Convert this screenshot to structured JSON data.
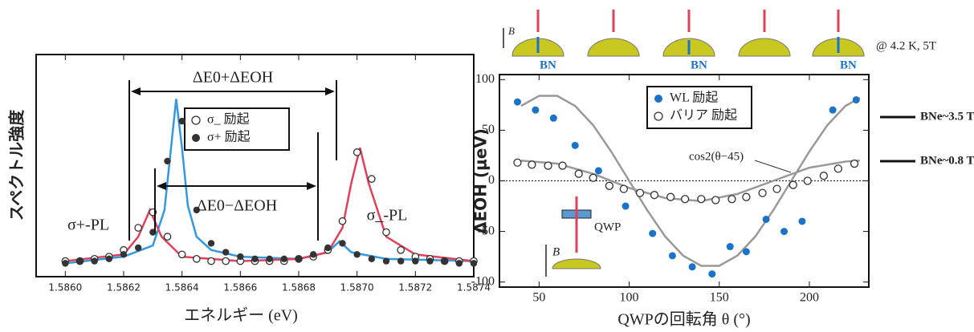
{
  "chart_data": [
    {
      "type": "scatter",
      "x_label": "エネルギー (eV)",
      "y_label": "スペクトル強度",
      "xlim": [
        1.5859,
        1.5874
      ],
      "ylim": [
        0,
        100
      ],
      "xticks": [
        {
          "value": 1.586,
          "label": "1.5860"
        },
        1.5862,
        1.5864,
        1.5866,
        1.5868,
        {
          "value": 1.587,
          "label": "1.5870"
        },
        1.5872,
        1.5874
      ],
      "series": [
        {
          "name": "σ_ 励起",
          "marker": "open",
          "color": "#333333",
          "x": [
            1.586,
            1.58605,
            1.5861,
            1.58615,
            1.5862,
            1.58625,
            1.5863,
            1.58635,
            1.5864,
            1.58645,
            1.5865,
            1.58655,
            1.5866,
            1.58665,
            1.5867,
            1.58675,
            1.5868,
            1.58685,
            1.5869,
            1.58695,
            1.587,
            1.58705,
            1.5871,
            1.58715,
            1.5872,
            1.58725,
            1.5873,
            1.58735,
            1.5874
          ],
          "values": [
            7,
            7,
            8,
            9,
            12,
            22,
            29,
            18,
            10,
            8,
            7,
            7,
            7,
            7,
            7,
            7,
            8,
            9,
            12,
            25,
            56,
            44,
            20,
            12,
            9,
            8,
            7,
            7,
            7
          ]
        },
        {
          "name": "σ+ 励起",
          "marker": "filled",
          "color": "#333333",
          "x": [
            1.586,
            1.58605,
            1.5861,
            1.58615,
            1.5862,
            1.58625,
            1.5863,
            1.58635,
            1.5864,
            1.58645,
            1.5865,
            1.58655,
            1.5866,
            1.58665,
            1.5867,
            1.58675,
            1.5868,
            1.58685,
            1.5869,
            1.58695,
            1.587,
            1.58705,
            1.5871,
            1.58715,
            1.5872,
            1.58725,
            1.5873,
            1.58735,
            1.5874
          ],
          "values": [
            6,
            7,
            7,
            8,
            10,
            13,
            20,
            52,
            70,
            30,
            15,
            11,
            9,
            8,
            8,
            8,
            8,
            10,
            13,
            15,
            10,
            8,
            7,
            7,
            7,
            7,
            7,
            6,
            6
          ]
        }
      ],
      "fits": [
        {
          "color": "#3399dd",
          "x": [
            1.586,
            1.5862,
            1.5863,
            1.58634,
            1.58636,
            1.58638,
            1.5864,
            1.58642,
            1.58645,
            1.5865,
            1.5866,
            1.5868,
            1.5869,
            1.58694,
            1.58698,
            1.5871,
            1.5874
          ],
          "values": [
            6,
            9,
            14,
            30,
            55,
            80,
            58,
            32,
            18,
            12,
            9,
            8,
            11,
            16,
            11,
            8,
            7
          ]
        },
        {
          "color": "#e0405a",
          "x": [
            1.586,
            1.5862,
            1.58625,
            1.58629,
            1.58633,
            1.5864,
            1.5866,
            1.5868,
            1.5869,
            1.58695,
            1.58698,
            1.58701,
            1.58704,
            1.5871,
            1.5872,
            1.5874
          ],
          "values": [
            7,
            10,
            18,
            30,
            18,
            9,
            7,
            8,
            11,
            22,
            42,
            58,
            42,
            18,
            10,
            7
          ]
        }
      ],
      "annotations": [
        "ΔE0+ΔEOH",
        "ΔE0−ΔEOH",
        "σ+-PL",
        "σ_-PL"
      ]
    },
    {
      "type": "scatter",
      "x_label": "QWPの回転角 θ (°)",
      "y_label": "ΔEOH (μeV)",
      "xlim": [
        28,
        233
      ],
      "ylim": [
        -105,
        105
      ],
      "xticks": [
        50,
        100,
        150,
        200
      ],
      "yticks": [
        -100,
        -50,
        0,
        50,
        100
      ],
      "series": [
        {
          "name": "WL 励起",
          "marker": "filled",
          "color": "#1a73c8",
          "x": [
            38,
            48,
            58,
            70,
            83,
            98,
            113,
            124,
            135,
            146,
            156,
            165,
            176,
            186,
            196,
            213,
            226
          ],
          "values": [
            78,
            70,
            62,
            35,
            10,
            -25,
            -52,
            -74,
            -85,
            -92,
            -65,
            -70,
            -38,
            -50,
            -40,
            70,
            80
          ]
        },
        {
          "name": "バリア 励起",
          "marker": "open",
          "color": "#333333",
          "x": [
            38,
            46,
            55,
            63,
            72,
            80,
            89,
            97,
            106,
            114,
            123,
            131,
            140,
            148,
            157,
            165,
            174,
            182,
            191,
            199,
            208,
            216,
            225
          ],
          "values": [
            18,
            16,
            15,
            15,
            7,
            3,
            -5,
            -8,
            -12,
            -14,
            -16,
            -18,
            -18,
            -19,
            -18,
            -16,
            -12,
            -8,
            -4,
            0,
            5,
            12,
            17
          ]
        }
      ],
      "fits": [
        {
          "color": "#999999",
          "x": [
            40,
            50,
            60,
            70,
            80,
            90,
            100,
            110,
            120,
            130,
            140,
            150,
            160,
            170,
            180,
            190,
            200,
            210,
            220,
            228
          ],
          "values": [
            74,
            84,
            84,
            74,
            55,
            29,
            0,
            -29,
            -55,
            -74,
            -84,
            -84,
            -74,
            -55,
            -29,
            0,
            29,
            55,
            74,
            82
          ]
        },
        {
          "color": "#999999",
          "x": [
            40,
            60,
            80,
            100,
            120,
            140,
            160,
            180,
            200,
            220,
            228
          ],
          "values": [
            20,
            17,
            7,
            -7,
            -17,
            -20,
            -13,
            0,
            13,
            19,
            20
          ]
        }
      ],
      "annotations": [
        "cos2(θ−45)",
        "QWP",
        "B",
        "@ 4.2 K, 5T",
        "BN",
        "BNe~3.5 T",
        "BNe~0.8 T"
      ]
    }
  ]
}
